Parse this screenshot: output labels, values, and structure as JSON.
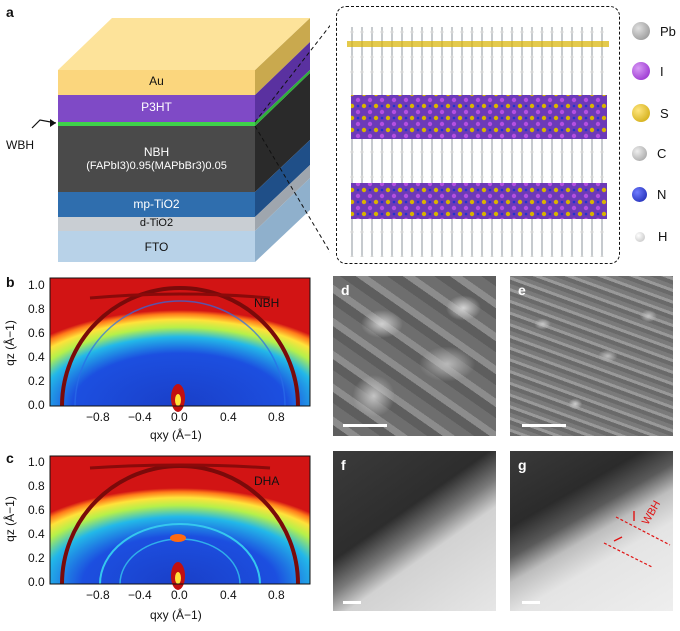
{
  "panel_a": {
    "letter": "a",
    "layers": {
      "au": "Au",
      "p3ht": "P3HT",
      "nbh_line1": "NBH",
      "nbh_line2": "(FAPbI3)0.95(MAPbBr3)0.05",
      "mp_tio2": "mp-TiO2",
      "d_tio2": "d-TiO2",
      "fto": "FTO"
    },
    "wbh_label": "WBH",
    "legend": [
      {
        "label": "Pb",
        "color": "#9a9a9a"
      },
      {
        "label": "I",
        "color": "#9b30d0"
      },
      {
        "label": "S",
        "color": "#d8b400"
      },
      {
        "label": "C",
        "color": "#b8b8b8"
      },
      {
        "label": "N",
        "color": "#2233cc"
      },
      {
        "label": "H",
        "color": "#f2f2f2"
      }
    ]
  },
  "panel_b": {
    "letter": "b",
    "sample_label": "NBH",
    "x_ticks": [
      "−0.8",
      "−0.4",
      "0.0",
      "0.4",
      "0.8"
    ],
    "y_ticks": [
      "1.0",
      "0.8",
      "0.6",
      "0.4",
      "0.2",
      "0.0"
    ],
    "x_axis_label": "qxy (Å−1)",
    "y_axis_label": "qz (Å−1)"
  },
  "panel_c": {
    "letter": "c",
    "sample_label": "DHA",
    "x_ticks": [
      "−0.8",
      "−0.4",
      "0.0",
      "0.4",
      "0.8"
    ],
    "y_ticks": [
      "1.0",
      "0.8",
      "0.6",
      "0.4",
      "0.2",
      "0.0"
    ],
    "x_axis_label": "qxy (Å−1)",
    "y_axis_label": "qz (Å−1)"
  },
  "panel_d": {
    "letter": "d"
  },
  "panel_e": {
    "letter": "e"
  },
  "panel_f": {
    "letter": "f"
  },
  "panel_g": {
    "letter": "g",
    "annotation": "WBH"
  }
}
